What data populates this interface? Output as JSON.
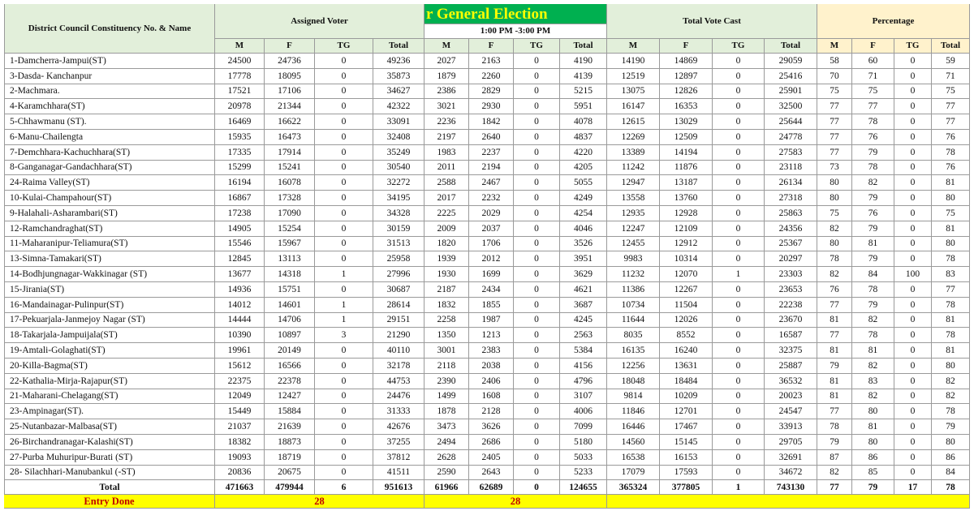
{
  "table": {
    "headers": {
      "name": "District Council Constituency No. & Name",
      "assigned": "Assigned Voter",
      "election": "r General Election",
      "time": "1:00 PM -3:00 PM",
      "cast": "Total Vote Cast",
      "percentage": "Percentage"
    },
    "subheaders": [
      "M",
      "F",
      "TG",
      "Total",
      "M",
      "F",
      "TG",
      "Total",
      "M",
      "F",
      "TG",
      "Total",
      "M",
      "F",
      "TG",
      "Total"
    ],
    "rows": [
      [
        "1-Damcherra-Jampui(ST)",
        24500,
        24736,
        0,
        49236,
        2027,
        2163,
        0,
        4190,
        14190,
        14869,
        0,
        29059,
        58,
        60,
        0,
        59
      ],
      [
        "3-Dasda- Kanchanpur",
        17778,
        18095,
        0,
        35873,
        1879,
        2260,
        0,
        4139,
        12519,
        12897,
        0,
        25416,
        70,
        71,
        0,
        71
      ],
      [
        "2-Machmara.",
        17521,
        17106,
        0,
        34627,
        2386,
        2829,
        0,
        5215,
        13075,
        12826,
        0,
        25901,
        75,
        75,
        0,
        75
      ],
      [
        "4-Karamchhara(ST)",
        20978,
        21344,
        0,
        42322,
        3021,
        2930,
        0,
        5951,
        16147,
        16353,
        0,
        32500,
        77,
        77,
        0,
        77
      ],
      [
        "5-Chhawmanu (ST).",
        16469,
        16622,
        0,
        33091,
        2236,
        1842,
        0,
        4078,
        12615,
        13029,
        0,
        25644,
        77,
        78,
        0,
        77
      ],
      [
        "6-Manu-Chailengta",
        15935,
        16473,
        0,
        32408,
        2197,
        2640,
        0,
        4837,
        12269,
        12509,
        0,
        24778,
        77,
        76,
        0,
        76
      ],
      [
        "7-Demchhara-Kachuchhara(ST)",
        17335,
        17914,
        0,
        35249,
        1983,
        2237,
        0,
        4220,
        13389,
        14194,
        0,
        27583,
        77,
        79,
        0,
        78
      ],
      [
        "8-Ganganagar-Gandachhara(ST)",
        15299,
        15241,
        0,
        30540,
        2011,
        2194,
        0,
        4205,
        11242,
        11876,
        0,
        23118,
        73,
        78,
        0,
        76
      ],
      [
        "24-Raima Valley(ST)",
        16194,
        16078,
        0,
        32272,
        2588,
        2467,
        0,
        5055,
        12947,
        13187,
        0,
        26134,
        80,
        82,
        0,
        81
      ],
      [
        "10-Kulai-Champahour(ST)",
        16867,
        17328,
        0,
        34195,
        2017,
        2232,
        0,
        4249,
        13558,
        13760,
        0,
        27318,
        80,
        79,
        0,
        80
      ],
      [
        "9-Halahali-Asharambari(ST)",
        17238,
        17090,
        0,
        34328,
        2225,
        2029,
        0,
        4254,
        12935,
        12928,
        0,
        25863,
        75,
        76,
        0,
        75
      ],
      [
        "12-Ramchandraghat(ST)",
        14905,
        15254,
        0,
        30159,
        2009,
        2037,
        0,
        4046,
        12247,
        12109,
        0,
        24356,
        82,
        79,
        0,
        81
      ],
      [
        "11-Maharanipur-Teliamura(ST)",
        15546,
        15967,
        0,
        31513,
        1820,
        1706,
        0,
        3526,
        12455,
        12912,
        0,
        25367,
        80,
        81,
        0,
        80
      ],
      [
        "13-Simna-Tamakari(ST)",
        12845,
        13113,
        0,
        25958,
        1939,
        2012,
        0,
        3951,
        9983,
        10314,
        0,
        20297,
        78,
        79,
        0,
        78
      ],
      [
        "14-Bodhjungnagar-Wakkinagar (ST)",
        13677,
        14318,
        1,
        27996,
        1930,
        1699,
        0,
        3629,
        11232,
        12070,
        1,
        23303,
        82,
        84,
        100,
        83
      ],
      [
        "15-Jirania(ST)",
        14936,
        15751,
        0,
        30687,
        2187,
        2434,
        0,
        4621,
        11386,
        12267,
        0,
        23653,
        76,
        78,
        0,
        77
      ],
      [
        "16-Mandainagar-Pulinpur(ST)",
        14012,
        14601,
        1,
        28614,
        1832,
        1855,
        0,
        3687,
        10734,
        11504,
        0,
        22238,
        77,
        79,
        0,
        78
      ],
      [
        "17-Pekuarjala-Janmejoy Nagar (ST)",
        14444,
        14706,
        1,
        29151,
        2258,
        1987,
        0,
        4245,
        11644,
        12026,
        0,
        23670,
        81,
        82,
        0,
        81
      ],
      [
        "18-Takarjala-Jampuijala(ST)",
        10390,
        10897,
        3,
        21290,
        1350,
        1213,
        0,
        2563,
        8035,
        8552,
        0,
        16587,
        77,
        78,
        0,
        78
      ],
      [
        "19-Amtali-Golaghati(ST)",
        19961,
        20149,
        0,
        40110,
        3001,
        2383,
        0,
        5384,
        16135,
        16240,
        0,
        32375,
        81,
        81,
        0,
        81
      ],
      [
        "20-Killa-Bagma(ST)",
        15612,
        16566,
        0,
        32178,
        2118,
        2038,
        0,
        4156,
        12256,
        13631,
        0,
        25887,
        79,
        82,
        0,
        80
      ],
      [
        "22-Kathalia-Mirja-Rajapur(ST)",
        22375,
        22378,
        0,
        44753,
        2390,
        2406,
        0,
        4796,
        18048,
        18484,
        0,
        36532,
        81,
        83,
        0,
        82
      ],
      [
        "21-Maharani-Chelagang(ST)",
        12049,
        12427,
        0,
        24476,
        1499,
        1608,
        0,
        3107,
        9814,
        10209,
        0,
        20023,
        81,
        82,
        0,
        82
      ],
      [
        "23-Ampinagar(ST).",
        15449,
        15884,
        0,
        31333,
        1878,
        2128,
        0,
        4006,
        11846,
        12701,
        0,
        24547,
        77,
        80,
        0,
        78
      ],
      [
        "25-Nutanbazar-Malbasa(ST)",
        21037,
        21639,
        0,
        42676,
        3473,
        3626,
        0,
        7099,
        16446,
        17467,
        0,
        33913,
        78,
        81,
        0,
        79
      ],
      [
        "26-Birchandranagar-Kalashi(ST)",
        18382,
        18873,
        0,
        37255,
        2494,
        2686,
        0,
        5180,
        14560,
        15145,
        0,
        29705,
        79,
        80,
        0,
        80
      ],
      [
        "27-Purba Muhuripur-Burati (ST)",
        19093,
        18719,
        0,
        37812,
        2628,
        2405,
        0,
        5033,
        16538,
        16153,
        0,
        32691,
        87,
        86,
        0,
        86
      ],
      [
        "28- Silachhari-Manubankul (-ST)",
        20836,
        20675,
        0,
        41511,
        2590,
        2643,
        0,
        5233,
        17079,
        17593,
        0,
        34672,
        82,
        85,
        0,
        84
      ]
    ],
    "total": [
      "Total",
      471663,
      479944,
      6,
      951613,
      61966,
      62689,
      0,
      124655,
      365324,
      377805,
      1,
      743130,
      77,
      79,
      17,
      78
    ],
    "entry": {
      "label": "Entry Done",
      "assigned": 28,
      "election": 28
    }
  }
}
